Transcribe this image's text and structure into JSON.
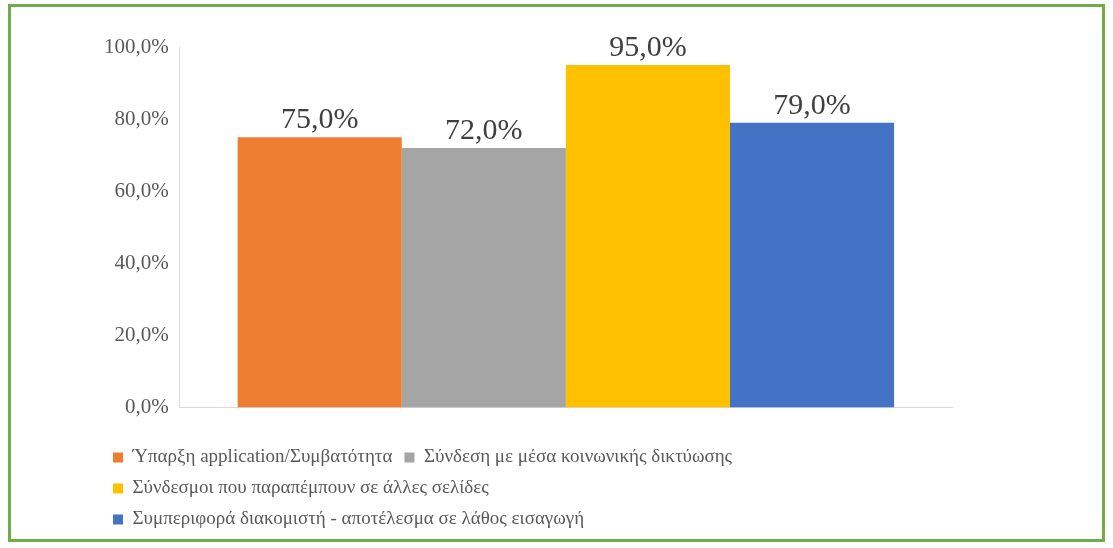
{
  "chart_data": {
    "type": "bar",
    "categories": [
      null
    ],
    "series": [
      {
        "name": "Ύπαρξη application/Συμβατότητα",
        "color": "#ed7d31",
        "values": [
          75
        ],
        "value_labels": [
          "75,0%"
        ]
      },
      {
        "name": "Σύνδεση με μέσα κοινωνικής δικτύωσης",
        "color": "#a5a5a5",
        "values": [
          72
        ],
        "value_labels": [
          "72,0%"
        ]
      },
      {
        "name": "Σύνδεσμοι που παραπέμπουν σε άλλες σελίδες",
        "color": "#ffc000",
        "values": [
          95
        ],
        "value_labels": [
          "95,0%"
        ]
      },
      {
        "name": "Συμπεριφορά διακομιστή - αποτέλεσμα σε λάθος εισαγωγή",
        "color": "#4472c4",
        "values": [
          79
        ],
        "value_labels": [
          "79,0%"
        ]
      }
    ],
    "ylim": [
      0,
      100
    ],
    "yticks": [
      {
        "value": 0,
        "label": "0,0%"
      },
      {
        "value": 20,
        "label": "20,0%"
      },
      {
        "value": 40,
        "label": "40,0%"
      },
      {
        "value": 60,
        "label": "60,0%"
      },
      {
        "value": 80,
        "label": "80,0%"
      },
      {
        "value": 100,
        "label": "100,0%"
      }
    ],
    "grid": false,
    "legend": "bottom"
  }
}
